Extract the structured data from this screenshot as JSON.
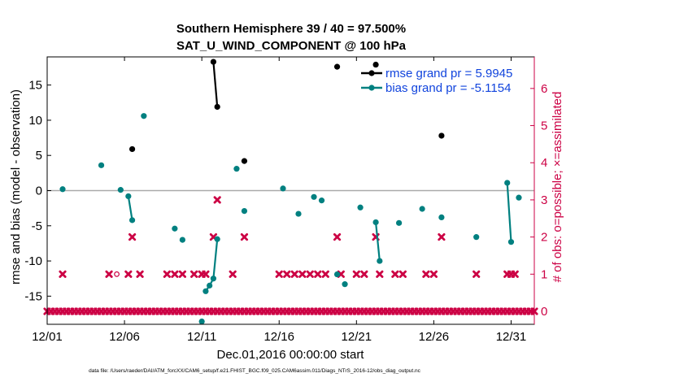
{
  "chart_data": {
    "type": "scatter",
    "title": "Southern Hemisphere 39 / 40 = 97.500%",
    "subtitle": "SAT_U_WIND_COMPONENT @ 100 hPa",
    "xlabel": "Dec.01,2016 00:00:00 start",
    "ylabel": "rmse and bias (model - observation)",
    "ylabel_right": "# of obs: o=possible; ×=assimilated",
    "footnote": "data file: /Users/raeder/DAI/ATM_forcXX/CAM6_setup/f.e21.FHIST_BGC.f09_025.CAM6assim.011/Diags_NTrS_2016-12/obs_diag_output.nc",
    "xlim": [
      0,
      31.5
    ],
    "ylim": [
      -19,
      19
    ],
    "ylim_right": [
      -0.35,
      6.85
    ],
    "x_ticks": [
      0,
      5,
      10,
      15,
      20,
      25,
      30
    ],
    "x_tick_labels": [
      "12/01",
      "12/06",
      "12/11",
      "12/16",
      "12/21",
      "12/26",
      "12/31"
    ],
    "y_ticks": [
      -15,
      -10,
      -5,
      0,
      5,
      10,
      15
    ],
    "y_tick_labels": [
      "-15",
      "-10",
      "-5",
      "0",
      "5",
      "10",
      "15"
    ],
    "y_ticks_right": [
      0,
      1,
      2,
      3,
      4,
      5,
      6
    ],
    "y_tick_labels_right": [
      "0",
      "1",
      "2",
      "3",
      "4",
      "5",
      "6"
    ],
    "legend": {
      "position": "top-right",
      "entries": [
        "rmse grand pr = 5.9945",
        "bias grand pr = -5.1154"
      ]
    },
    "colors": {
      "rmse": "#000000",
      "bias": "#008080",
      "obs": "#cc0044",
      "zero_line": "#aaaaaa",
      "legend_text": "#1144dd"
    },
    "series": [
      {
        "name": "rmse",
        "points": [
          [
            5.5,
            5.9
          ],
          [
            10.75,
            18.3
          ],
          [
            11.0,
            11.9
          ],
          [
            12.75,
            4.2
          ],
          [
            18.75,
            17.6
          ],
          [
            21.25,
            17.9
          ],
          [
            25.5,
            7.8
          ]
        ],
        "segments": [
          [
            [
              10.75,
              18.3
            ],
            [
              11.0,
              11.9
            ]
          ]
        ]
      },
      {
        "name": "bias",
        "points": [
          [
            1.0,
            0.2
          ],
          [
            3.5,
            3.6
          ],
          [
            4.75,
            0.1
          ],
          [
            5.25,
            -0.8
          ],
          [
            5.5,
            -4.2
          ],
          [
            6.25,
            10.6
          ],
          [
            8.25,
            -5.4
          ],
          [
            8.75,
            -7.0
          ],
          [
            10.0,
            -18.6
          ],
          [
            10.25,
            -14.3
          ],
          [
            10.5,
            -13.5
          ],
          [
            10.75,
            -12.5
          ],
          [
            11.0,
            -6.9
          ],
          [
            12.25,
            3.1
          ],
          [
            12.75,
            -2.9
          ],
          [
            15.25,
            0.3
          ],
          [
            16.25,
            -3.3
          ],
          [
            17.25,
            -0.9
          ],
          [
            17.75,
            -1.4
          ],
          [
            18.75,
            -11.9
          ],
          [
            19.25,
            -13.3
          ],
          [
            20.25,
            -2.4
          ],
          [
            21.25,
            -4.5
          ],
          [
            21.5,
            -10.0
          ],
          [
            22.75,
            -4.6
          ],
          [
            24.25,
            -2.6
          ],
          [
            25.5,
            -3.8
          ],
          [
            27.75,
            -6.6
          ],
          [
            29.75,
            1.1
          ],
          [
            30.0,
            -7.3
          ],
          [
            30.5,
            -1.0
          ]
        ],
        "segments": [
          [
            [
              5.25,
              -0.8
            ],
            [
              5.5,
              -4.2
            ]
          ],
          [
            [
              10.25,
              -14.3
            ],
            [
              10.5,
              -13.5
            ],
            [
              10.75,
              -12.5
            ],
            [
              11.0,
              -6.9
            ]
          ],
          [
            [
              21.25,
              -4.5
            ],
            [
              21.5,
              -10.0
            ]
          ],
          [
            [
              29.75,
              1.1
            ],
            [
              30.0,
              -7.3
            ]
          ]
        ]
      }
    ],
    "obs_assimilated_zero_range": [
      0,
      31.5,
      0.25
    ],
    "obs_assimilated": [
      [
        1.0,
        1
      ],
      [
        4.0,
        1
      ],
      [
        5.25,
        1
      ],
      [
        6.0,
        1
      ],
      [
        7.75,
        1
      ],
      [
        8.25,
        1
      ],
      [
        8.75,
        1
      ],
      [
        9.5,
        1
      ],
      [
        10.0,
        1
      ],
      [
        10.25,
        1
      ],
      [
        12.0,
        1
      ],
      [
        15.0,
        1
      ],
      [
        15.5,
        1
      ],
      [
        16.0,
        1
      ],
      [
        16.5,
        1
      ],
      [
        17.0,
        1
      ],
      [
        17.5,
        1
      ],
      [
        18.0,
        1
      ],
      [
        19.0,
        1
      ],
      [
        20.0,
        1
      ],
      [
        20.5,
        1
      ],
      [
        21.5,
        1
      ],
      [
        22.5,
        1
      ],
      [
        23.0,
        1
      ],
      [
        24.5,
        1
      ],
      [
        25.0,
        1
      ],
      [
        27.75,
        1
      ],
      [
        29.75,
        1
      ],
      [
        30.0,
        1
      ],
      [
        30.25,
        1
      ],
      [
        5.5,
        2
      ],
      [
        10.75,
        2
      ],
      [
        12.75,
        2
      ],
      [
        18.75,
        2
      ],
      [
        21.25,
        2
      ],
      [
        25.5,
        2
      ],
      [
        11.0,
        3
      ]
    ],
    "obs_possible": [
      [
        4.5,
        1
      ]
    ]
  }
}
